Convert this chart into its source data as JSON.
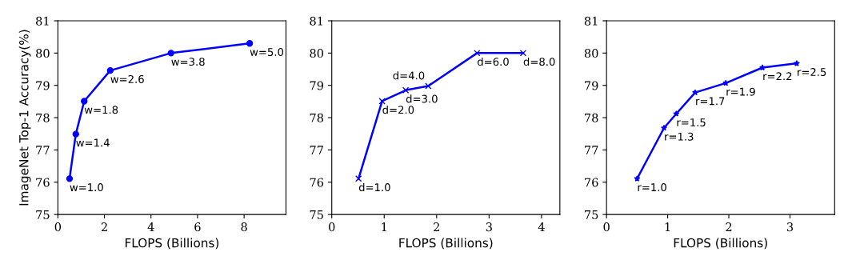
{
  "chart_data": [
    {
      "type": "line",
      "ylabel": "ImageNet Top-1 Accuracy(%)",
      "xlabel": "FLOPS (Billions)",
      "marker": "circle",
      "line_style": "solid",
      "grid": false,
      "legend": false,
      "x": [
        0.5,
        0.77,
        1.13,
        2.25,
        4.86,
        8.24
      ],
      "series": [
        {
          "color": "#0000ff",
          "values": [
            76.11,
            77.49,
            78.51,
            79.46,
            80.0,
            80.3
          ]
        }
      ],
      "xlim": [
        0,
        9.8
      ],
      "xticks": [
        0,
        2,
        4,
        6,
        8
      ],
      "ylim": [
        75,
        81
      ],
      "yticks": [
        75,
        76,
        77,
        78,
        79,
        80,
        81
      ],
      "annotations": [
        {
          "text": "w=1.0",
          "x": 0.5,
          "y": 76.11
        },
        {
          "text": "w=1.4",
          "x": 0.77,
          "y": 77.49
        },
        {
          "text": "w=1.8",
          "x": 1.13,
          "y": 78.51
        },
        {
          "text": "w=2.6",
          "x": 2.25,
          "y": 79.46
        },
        {
          "text": "w=3.8",
          "x": 4.86,
          "y": 80.0
        },
        {
          "text": "w=5.0",
          "x": 8.24,
          "y": 80.3
        }
      ]
    },
    {
      "type": "line",
      "xlabel": "FLOPS (Billions)",
      "marker": "cross",
      "line_style": "solid",
      "grid": false,
      "legend": false,
      "x": [
        0.51,
        0.96,
        1.41,
        1.84,
        2.77,
        3.65
      ],
      "series": [
        {
          "color": "#0000ff",
          "values": [
            76.11,
            78.51,
            78.85,
            78.98,
            80.0,
            80.0
          ]
        }
      ],
      "xlim": [
        0,
        4.35
      ],
      "xticks": [
        0,
        1,
        2,
        3,
        4
      ],
      "ylim": [
        75,
        81
      ],
      "yticks": [
        75,
        76,
        77,
        78,
        79,
        80,
        81
      ],
      "annotations": [
        {
          "text": "d=1.0",
          "x": 0.51,
          "y": 76.11
        },
        {
          "text": "d=2.0",
          "x": 0.96,
          "y": 78.51
        },
        {
          "text": "d=3.0",
          "x": 1.41,
          "y": 78.85
        },
        {
          "text": "d=4.0",
          "x": 1.84,
          "y": 78.98
        },
        {
          "text": "d=6.0",
          "x": 2.77,
          "y": 80.0
        },
        {
          "text": "d=8.0",
          "x": 3.65,
          "y": 80.0
        }
      ]
    },
    {
      "type": "line",
      "xlabel": "FLOPS (Billions)",
      "marker": "star",
      "line_style": "solid",
      "grid": false,
      "legend": false,
      "x": [
        0.5,
        0.94,
        1.14,
        1.45,
        1.95,
        2.55,
        3.11
      ],
      "series": [
        {
          "color": "#0000ff",
          "values": [
            76.11,
            77.68,
            78.12,
            78.78,
            79.07,
            79.55,
            79.68
          ]
        }
      ],
      "xlim": [
        0,
        3.73
      ],
      "xticks": [
        0,
        1,
        2,
        3
      ],
      "ylim": [
        75,
        81
      ],
      "yticks": [
        75,
        76,
        77,
        78,
        79,
        80,
        81
      ],
      "annotations": [
        {
          "text": "r=1.0",
          "x": 0.5,
          "y": 76.11
        },
        {
          "text": "r=1.3",
          "x": 0.94,
          "y": 77.68
        },
        {
          "text": "r=1.5",
          "x": 1.14,
          "y": 78.12
        },
        {
          "text": "r=1.7",
          "x": 1.45,
          "y": 78.78
        },
        {
          "text": "r=1.9",
          "x": 1.95,
          "y": 79.07
        },
        {
          "text": "r=2.2",
          "x": 2.55,
          "y": 79.55
        },
        {
          "text": "r=2.5",
          "x": 3.11,
          "y": 79.68
        }
      ]
    }
  ]
}
